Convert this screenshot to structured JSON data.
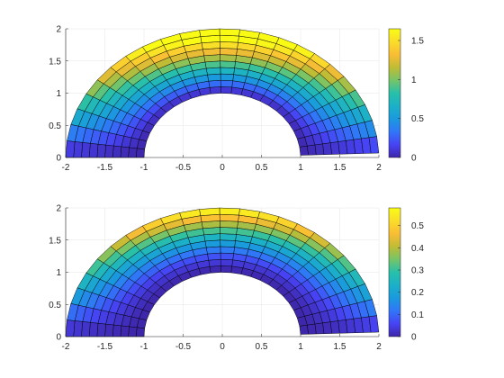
{
  "chart_data": [
    {
      "type": "heatmap",
      "title": "",
      "xlabel": "",
      "ylabel": "",
      "xlim": [
        -2,
        2
      ],
      "ylim": [
        0,
        2
      ],
      "xticks": [
        "-2",
        "-1.5",
        "-1",
        "-0.5",
        "0",
        "0.5",
        "1",
        "1.5",
        "2"
      ],
      "yticks": [
        "0",
        "0.5",
        "1",
        "1.5",
        "2"
      ],
      "grid": true,
      "mesh": {
        "shape": "half-annulus",
        "inner_radius": 1,
        "outer_radius": 2,
        "radial_divisions": 10,
        "angular_divisions": 24,
        "theta_start_deg": 2,
        "theta_end_deg": 180
      },
      "field": {
        "formula": "2 * (r - 1) * sin(theta)",
        "description": "value grows outward and toward the top of the half annulus"
      },
      "clim": [
        0,
        1.65
      ],
      "colorbar": {
        "location": "right",
        "colormap": "parula",
        "ticks": [
          "0",
          "0.5",
          "1",
          "1.5"
        ]
      }
    },
    {
      "type": "heatmap",
      "title": "",
      "xlabel": "",
      "ylabel": "",
      "xlim": [
        -2,
        2
      ],
      "ylim": [
        0,
        2
      ],
      "xticks": [
        "-2",
        "-1.5",
        "-1",
        "-0.5",
        "0",
        "0.5",
        "1",
        "1.5",
        "2"
      ],
      "yticks": [
        "0",
        "0.5",
        "1",
        "1.5",
        "2"
      ],
      "grid": true,
      "mesh": {
        "shape": "half-annulus",
        "inner_radius": 1,
        "outer_radius": 2,
        "radial_divisions": 10,
        "angular_divisions": 24,
        "theta_start_deg": 2,
        "theta_end_deg": 180
      },
      "field": {
        "formula": "0.6 * ((r - 1) ^ 1.5) * sin(theta)",
        "description": "value grows outward and toward the top of the half annulus"
      },
      "clim": [
        0,
        0.58
      ],
      "colorbar": {
        "location": "right",
        "colormap": "parula",
        "ticks": [
          "0",
          "0.1",
          "0.2",
          "0.3",
          "0.4",
          "0.5"
        ]
      }
    }
  ],
  "colors": {
    "parula": [
      "#3e26a8",
      "#4743f4",
      "#3176f8",
      "#1a99de",
      "#1cb0c8",
      "#28c0a9",
      "#76c468",
      "#c0bc35",
      "#f9bd35",
      "#fadd2a",
      "#f9fb15"
    ],
    "grid": "#e6e6e6",
    "axis": "#262626",
    "edges": "#000000"
  }
}
